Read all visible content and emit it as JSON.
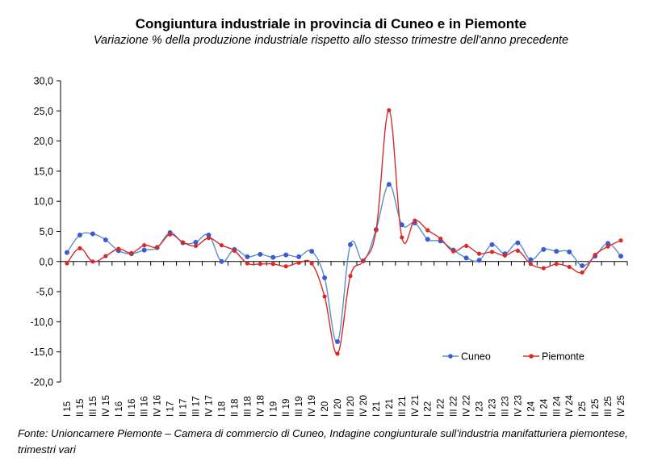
{
  "title": "Congiuntura industriale in provincia di Cuneo e in Piemonte",
  "subtitle": "Variazione % della produzione industriale rispetto allo stesso trimestre dell'anno precedente",
  "source": "Fonte: Unioncamere Piemonte – Camera di commercio di Cuneo, Indagine congiunturale sull’industria manifatturiera piemontese, trimestri vari",
  "colors": {
    "cuneo": "#3b5bd6",
    "cuneo_line": "#5b8fc8",
    "piemonte": "#d62b2b",
    "axis": "#000000"
  },
  "chart_data": {
    "type": "line",
    "title": "Congiuntura industriale in provincia di Cuneo e in Piemonte",
    "subtitle": "Variazione % della produzione industriale rispetto allo stesso trimestre dell'anno precedente",
    "ylim": [
      -20,
      30
    ],
    "yticks": [
      "30,0",
      "25,0",
      "20,0",
      "15,0",
      "10,0",
      "5,0",
      "0,0",
      "-5,0",
      "-10,0",
      "-15,0",
      "-20,0"
    ],
    "grid": false,
    "legend_position": "bottom-right",
    "categories": [
      "I 15",
      "II 15",
      "III 15",
      "IV 15",
      "I 16",
      "II 16",
      "III 16",
      "IV 16",
      "I 17",
      "II 17",
      "III 17",
      "IV 17",
      "I 18",
      "II 18",
      "III 18",
      "IV 18",
      "I 19",
      "II 19",
      "III 19",
      "IV 19",
      "I 20",
      "II 20",
      "III 20",
      "IV 20",
      "I 21",
      "II 21",
      "III 21",
      "IV 21",
      "I 22",
      "II 22",
      "III 22",
      "IV 22",
      "I 23",
      "II 23",
      "III 23",
      "IV 23",
      "I 24",
      "II 24",
      "III 24",
      "IV 24",
      "I 25",
      "II 25",
      "III 25",
      "IV 25"
    ],
    "series": [
      {
        "name": "Cuneo",
        "values": [
          1.5,
          4.4,
          4.6,
          3.6,
          1.8,
          1.3,
          1.9,
          2.3,
          4.8,
          3.1,
          3.2,
          4.4,
          0.0,
          2.0,
          0.8,
          1.2,
          0.7,
          1.1,
          0.8,
          1.7,
          -2.7,
          -13.3,
          2.8,
          0.1,
          5.3,
          12.8,
          6.1,
          6.4,
          3.7,
          3.4,
          1.9,
          0.6,
          0.2,
          2.8,
          1.3,
          3.1,
          0.3,
          2.0,
          1.7,
          1.6,
          -0.7,
          0.9,
          3.0,
          0.9
        ]
      },
      {
        "name": "Piemonte",
        "values": [
          -0.3,
          2.2,
          0.0,
          0.9,
          2.1,
          1.4,
          2.7,
          2.4,
          4.5,
          3.2,
          2.6,
          3.9,
          2.7,
          1.8,
          -0.3,
          -0.4,
          -0.4,
          -0.8,
          -0.2,
          -0.3,
          -5.8,
          -15.3,
          -2.4,
          0.1,
          5.2,
          25.1,
          4.0,
          6.8,
          5.2,
          3.8,
          1.7,
          2.6,
          1.3,
          1.6,
          1.0,
          1.8,
          -0.4,
          -1.1,
          -0.4,
          -0.9,
          -1.8,
          1.1,
          2.5,
          3.5
        ]
      }
    ]
  }
}
